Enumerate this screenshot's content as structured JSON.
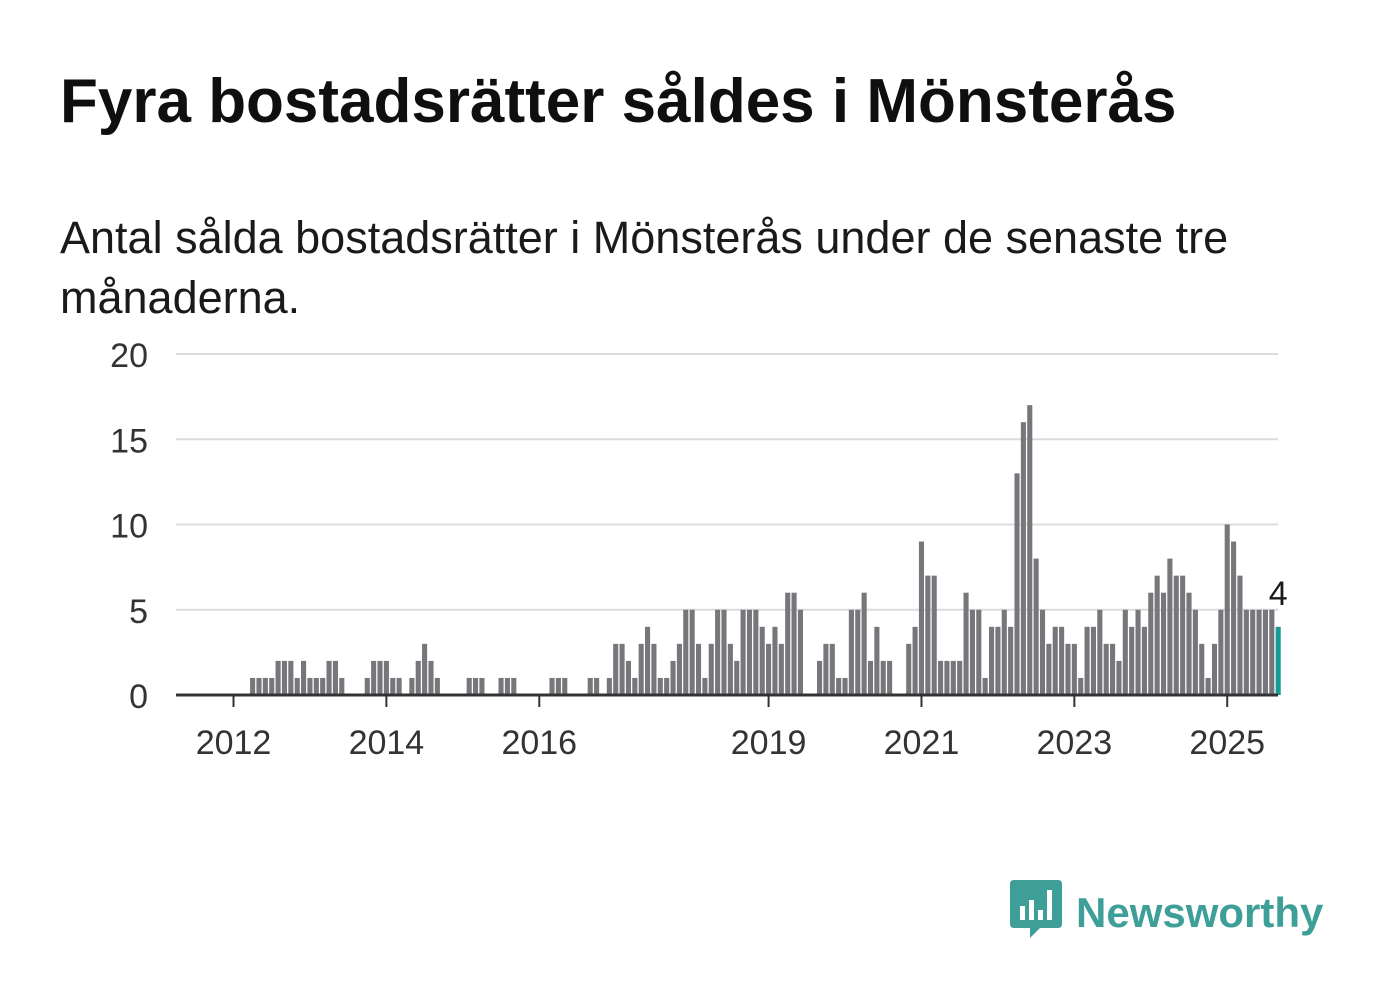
{
  "title": "Fyra bostadsrätter såldes i Mönsterås",
  "subtitle": "Antal sålda bostadsrätter i Mönsterås under de senaste tre månaderna.",
  "logo": {
    "name": "Newsworthy",
    "icon": "bar-chart-speech-bubble-icon",
    "color": "#3e9e98"
  },
  "chart_data": {
    "type": "bar",
    "title": "",
    "xlabel": "",
    "ylabel": "",
    "ylim": [
      0,
      20
    ],
    "yticks": [
      0,
      5,
      10,
      15,
      20
    ],
    "grid": true,
    "x_tick_labels": [
      "2012",
      "2014",
      "2016",
      "2019",
      "2021",
      "2023",
      "2025"
    ],
    "bar_color": "#77767a",
    "highlight_color": "#1a9a95",
    "annotation": {
      "text": "4",
      "target": "last"
    },
    "values": [
      0,
      0,
      0,
      0,
      0,
      0,
      0,
      0,
      0,
      0,
      0,
      1,
      1,
      1,
      1,
      2,
      2,
      2,
      1,
      2,
      1,
      1,
      1,
      2,
      2,
      1,
      0,
      0,
      0,
      1,
      2,
      2,
      2,
      1,
      1,
      0,
      1,
      2,
      3,
      2,
      1,
      0,
      0,
      0,
      0,
      1,
      1,
      1,
      0,
      0,
      1,
      1,
      1,
      0,
      0,
      0,
      0,
      0,
      1,
      1,
      1,
      0,
      0,
      0,
      1,
      1,
      0,
      1,
      3,
      3,
      2,
      1,
      3,
      4,
      3,
      1,
      1,
      2,
      3,
      5,
      5,
      3,
      1,
      3,
      5,
      5,
      3,
      2,
      5,
      5,
      5,
      4,
      3,
      4,
      3,
      6,
      6,
      5,
      0,
      0,
      2,
      3,
      3,
      1,
      1,
      5,
      5,
      6,
      2,
      4,
      2,
      2,
      0,
      0,
      3,
      4,
      9,
      7,
      7,
      2,
      2,
      2,
      2,
      6,
      5,
      5,
      1,
      4,
      4,
      5,
      4,
      13,
      16,
      17,
      8,
      5,
      3,
      4,
      4,
      3,
      3,
      1,
      4,
      4,
      5,
      3,
      3,
      2,
      5,
      4,
      5,
      4,
      6,
      7,
      6,
      8,
      7,
      7,
      6,
      5,
      3,
      1,
      3,
      5,
      10,
      9,
      7,
      5,
      5,
      5,
      5,
      5,
      4
    ]
  }
}
